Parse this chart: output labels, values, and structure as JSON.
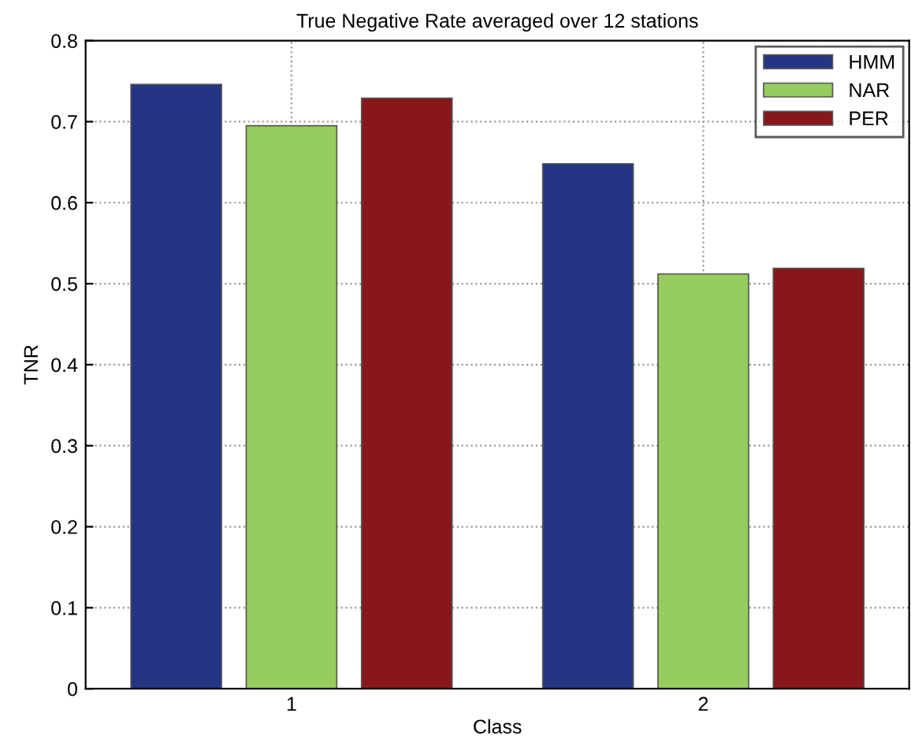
{
  "chart_data": {
    "type": "bar",
    "title": "True Negative Rate averaged over 12 stations",
    "xlabel": "Class",
    "ylabel": "TNR",
    "categories": [
      "1",
      "2"
    ],
    "series": [
      {
        "name": "HMM",
        "color": "#233583",
        "values": [
          0.746,
          0.648
        ]
      },
      {
        "name": "NAR",
        "color": "#97cc5e",
        "values": [
          0.695,
          0.512
        ]
      },
      {
        "name": "PER",
        "color": "#87171a",
        "values": [
          0.729,
          0.519
        ]
      }
    ],
    "ylim": [
      0,
      0.8
    ],
    "yticks": [
      0,
      0.1,
      0.2,
      0.3,
      0.4,
      0.5,
      0.6,
      0.7,
      0.8
    ],
    "grid": true,
    "legend": "top right"
  }
}
